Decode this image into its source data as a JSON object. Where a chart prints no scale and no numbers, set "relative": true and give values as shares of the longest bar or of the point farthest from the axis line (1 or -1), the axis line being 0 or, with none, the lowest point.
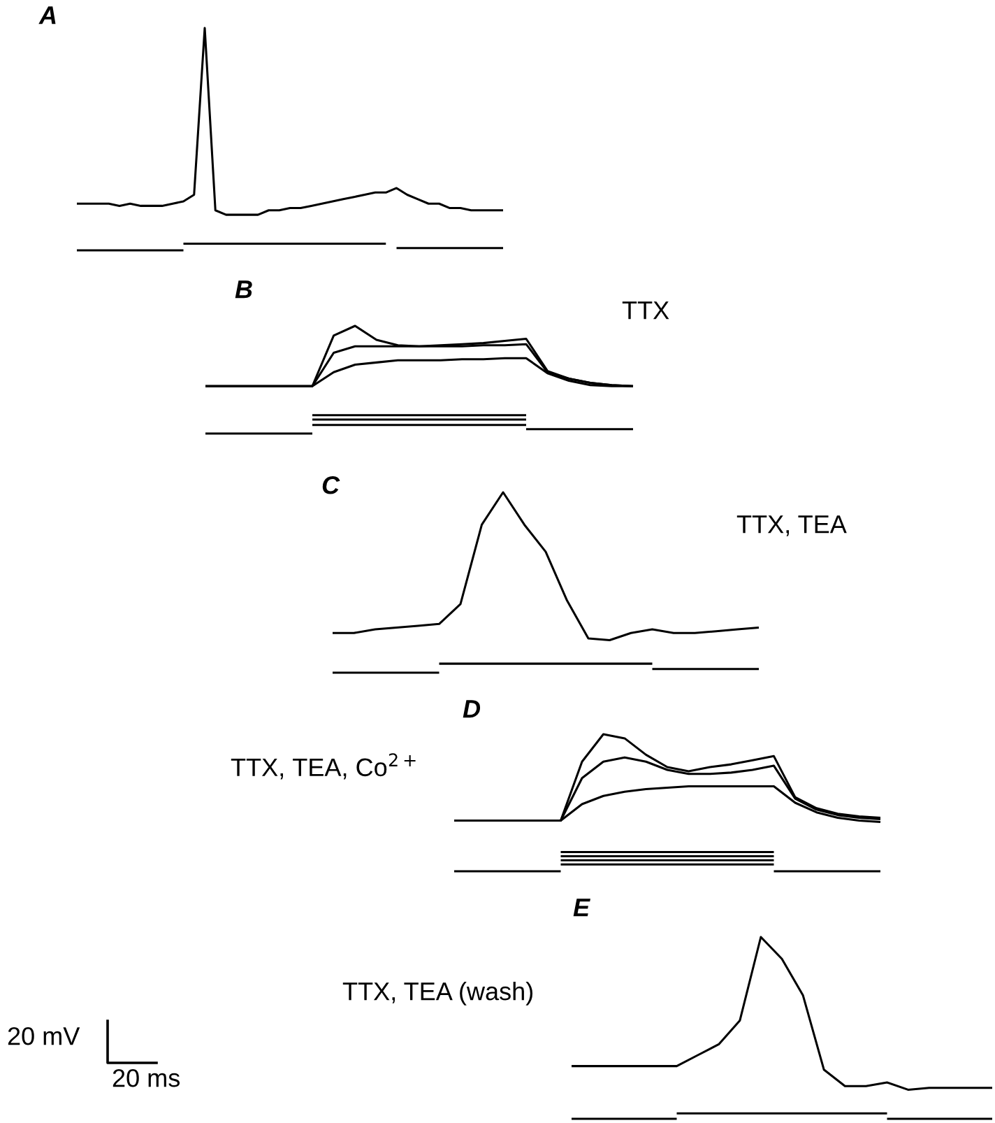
{
  "chart_data": [
    {
      "type": "line",
      "relative": true,
      "title": "A",
      "categories": [
        null,
        null,
        null,
        null,
        null,
        null,
        null,
        null,
        null,
        null,
        null,
        null,
        null,
        null,
        null,
        null,
        null,
        null,
        null,
        null,
        null,
        null,
        null,
        null,
        null,
        null,
        null,
        null,
        null,
        null,
        null,
        null,
        null,
        null,
        null,
        null,
        null,
        null,
        null,
        null,
        null
      ],
      "series": [
        {
          "color": "#000000",
          "values": [
            0.21,
            0.21,
            0.21,
            0.21,
            0.2,
            0.21,
            0.2,
            0.2,
            0.2,
            0.21,
            0.22,
            0.25,
            1.0,
            0.18,
            0.16,
            0.16,
            0.16,
            0.16,
            0.18,
            0.18,
            0.19,
            0.19,
            0.2,
            0.21,
            0.22,
            0.23,
            0.24,
            0.25,
            0.26,
            0.26,
            0.28,
            0.25,
            0.23,
            0.21,
            0.21,
            0.19,
            0.19,
            0.18,
            0.18,
            0.18,
            0.18
          ]
        },
        {
          "color": "#000000",
          "values": [
            0,
            0,
            0,
            0,
            0,
            0,
            0,
            0,
            0,
            0,
            0,
            null,
            null,
            null,
            null,
            null,
            null,
            null,
            null,
            null,
            null,
            null,
            null,
            null,
            null,
            null,
            null,
            null,
            null,
            null,
            0.01,
            0.01,
            0.01,
            0.01,
            0.01,
            0.01,
            0.01,
            0.01,
            0.01,
            0.01,
            0.01
          ]
        },
        {
          "color": "#000000",
          "values": [
            null,
            null,
            null,
            null,
            null,
            null,
            null,
            null,
            null,
            null,
            0.03,
            0.03,
            0.03,
            0.03,
            0.03,
            0.03,
            0.03,
            0.03,
            0.03,
            0.03,
            0.03,
            0.03,
            0.03,
            0.03,
            0.03,
            0.03,
            0.03,
            0.03,
            0.03,
            0.03,
            null,
            null,
            null,
            null,
            null,
            null,
            null,
            null,
            null,
            null,
            null
          ]
        }
      ]
    },
    {
      "type": "line",
      "relative": true,
      "title": "B",
      "annotations": [
        "TTX"
      ],
      "categories": [
        null,
        null,
        null,
        null,
        null,
        null,
        null,
        null,
        null,
        null,
        null,
        null,
        null,
        null,
        null,
        null,
        null,
        null,
        null,
        null,
        null
      ],
      "series": [
        {
          "color": "#000000",
          "values": [
            0.44,
            0.44,
            0.44,
            0.44,
            0.44,
            0.44,
            0.91,
            1.0,
            0.87,
            0.82,
            0.81,
            0.82,
            0.83,
            0.84,
            0.86,
            0.88,
            0.58,
            0.51,
            0.47,
            0.45,
            0.44
          ]
        },
        {
          "color": "#000000",
          "values": [
            0.44,
            0.44,
            0.44,
            0.44,
            0.44,
            0.44,
            0.75,
            0.81,
            0.81,
            0.81,
            0.81,
            0.81,
            0.81,
            0.82,
            0.82,
            0.83,
            0.57,
            0.51,
            0.47,
            0.45,
            0.44
          ]
        },
        {
          "color": "#000000",
          "values": [
            0.44,
            0.44,
            0.44,
            0.44,
            0.44,
            0.44,
            0.57,
            0.64,
            0.66,
            0.68,
            0.68,
            0.68,
            0.69,
            0.69,
            0.7,
            0.7,
            0.56,
            0.49,
            0.45,
            0.44,
            0.44
          ]
        },
        {
          "color": "#000000",
          "values": [
            0,
            0,
            0,
            0,
            0,
            0,
            null,
            null,
            null,
            null,
            null,
            null,
            null,
            null,
            null,
            0.04,
            0.04,
            0.04,
            0.04,
            0.04,
            0.04
          ]
        },
        {
          "color": "#000000",
          "values": [
            null,
            null,
            null,
            null,
            null,
            0.17,
            0.17,
            0.17,
            0.17,
            0.17,
            0.17,
            0.17,
            0.17,
            0.17,
            0.17,
            0.17,
            null,
            null,
            null,
            null,
            null
          ]
        },
        {
          "color": "#000000",
          "values": [
            null,
            null,
            null,
            null,
            null,
            0.13,
            0.13,
            0.13,
            0.13,
            0.13,
            0.13,
            0.13,
            0.13,
            0.13,
            0.13,
            0.13,
            null,
            null,
            null,
            null,
            null
          ]
        },
        {
          "color": "#000000",
          "values": [
            null,
            null,
            null,
            null,
            null,
            0.08,
            0.08,
            0.08,
            0.08,
            0.08,
            0.08,
            0.08,
            0.08,
            0.08,
            0.08,
            0.08,
            null,
            null,
            null,
            null,
            null
          ]
        }
      ]
    },
    {
      "type": "line",
      "relative": true,
      "title": "C",
      "annotations": [
        "TTX, TEA"
      ],
      "categories": [
        null,
        null,
        null,
        null,
        null,
        null,
        null,
        null,
        null,
        null,
        null,
        null,
        null,
        null,
        null,
        null,
        null,
        null,
        null,
        null,
        null
      ],
      "series": [
        {
          "color": "#000000",
          "values": [
            0.22,
            0.22,
            0.24,
            0.25,
            0.26,
            0.27,
            0.38,
            0.82,
            1.0,
            0.82,
            0.67,
            0.4,
            0.19,
            0.18,
            0.22,
            0.24,
            0.22,
            0.22,
            0.23,
            0.24,
            0.25
          ]
        },
        {
          "color": "#000000",
          "values": [
            0,
            0,
            0,
            0,
            0,
            0,
            null,
            null,
            null,
            null,
            null,
            null,
            null,
            null,
            null,
            0.02,
            0.02,
            0.02,
            0.02,
            0.02,
            0.02
          ]
        },
        {
          "color": "#000000",
          "values": [
            null,
            null,
            null,
            null,
            null,
            0.05,
            0.05,
            0.05,
            0.05,
            0.05,
            0.05,
            0.05,
            0.05,
            0.05,
            0.05,
            0.05,
            null,
            null,
            null,
            null,
            null
          ]
        }
      ]
    },
    {
      "type": "line",
      "relative": true,
      "title": "D",
      "annotations": [
        "TTX, TEA, Co$^{2+}$"
      ],
      "categories": [
        null,
        null,
        null,
        null,
        null,
        null,
        null,
        null,
        null,
        null,
        null,
        null,
        null,
        null,
        null,
        null,
        null,
        null,
        null,
        null,
        null
      ],
      "series": [
        {
          "color": "#000000",
          "values": [
            0.37,
            0.37,
            0.37,
            0.37,
            0.37,
            0.37,
            0.8,
            1.0,
            0.97,
            0.85,
            0.76,
            0.73,
            0.76,
            0.78,
            0.81,
            0.84,
            0.54,
            0.46,
            0.42,
            0.4,
            0.39
          ]
        },
        {
          "color": "#000000",
          "values": [
            0.37,
            0.37,
            0.37,
            0.37,
            0.37,
            0.37,
            0.68,
            0.8,
            0.83,
            0.8,
            0.74,
            0.71,
            0.71,
            0.72,
            0.74,
            0.77,
            0.53,
            0.45,
            0.41,
            0.39,
            0.38
          ]
        },
        {
          "color": "#000000",
          "values": [
            0.37,
            0.37,
            0.37,
            0.37,
            0.37,
            0.37,
            0.49,
            0.55,
            0.58,
            0.6,
            0.61,
            0.62,
            0.62,
            0.62,
            0.62,
            0.62,
            0.5,
            0.43,
            0.39,
            0.37,
            0.36
          ]
        },
        {
          "color": "#000000",
          "values": [
            0,
            0,
            0,
            0,
            0,
            0,
            null,
            null,
            null,
            null,
            null,
            null,
            null,
            null,
            null,
            0,
            0,
            0,
            0,
            0,
            0
          ]
        },
        {
          "color": "#000000",
          "values": [
            null,
            null,
            null,
            null,
            null,
            0.14,
            0.14,
            0.14,
            0.14,
            0.14,
            0.14,
            0.14,
            0.14,
            0.14,
            0.14,
            0.14,
            null,
            null,
            null,
            null,
            null
          ]
        },
        {
          "color": "#000000",
          "values": [
            null,
            null,
            null,
            null,
            null,
            0.11,
            0.11,
            0.11,
            0.11,
            0.11,
            0.11,
            0.11,
            0.11,
            0.11,
            0.11,
            0.11,
            null,
            null,
            null,
            null,
            null
          ]
        },
        {
          "color": "#000000",
          "values": [
            null,
            null,
            null,
            null,
            null,
            0.08,
            0.08,
            0.08,
            0.08,
            0.08,
            0.08,
            0.08,
            0.08,
            0.08,
            0.08,
            0.08,
            null,
            null,
            null,
            null,
            null
          ]
        },
        {
          "color": "#000000",
          "values": [
            null,
            null,
            null,
            null,
            null,
            0.05,
            0.05,
            0.05,
            0.05,
            0.05,
            0.05,
            0.05,
            0.05,
            0.05,
            0.05,
            0.05,
            null,
            null,
            null,
            null,
            null
          ]
        }
      ]
    },
    {
      "type": "line",
      "relative": true,
      "title": "E",
      "annotations": [
        "TTX, TEA (wash)",
        "20 mV",
        "20 ms"
      ],
      "categories": [
        null,
        null,
        null,
        null,
        null,
        null,
        null,
        null,
        null,
        null,
        null,
        null,
        null,
        null,
        null,
        null,
        null,
        null,
        null,
        null,
        null
      ],
      "series": [
        {
          "color": "#000000",
          "values": [
            0.29,
            0.29,
            0.29,
            0.29,
            0.29,
            0.29,
            0.35,
            0.41,
            0.54,
            1.0,
            0.88,
            0.68,
            0.27,
            0.18,
            0.18,
            0.2,
            0.16,
            0.17,
            0.17,
            0.17,
            0.17
          ]
        },
        {
          "color": "#000000",
          "values": [
            0,
            0,
            0,
            0,
            0,
            0,
            null,
            null,
            null,
            null,
            null,
            null,
            null,
            null,
            null,
            0,
            0,
            0,
            0,
            0,
            0
          ]
        },
        {
          "color": "#000000",
          "values": [
            null,
            null,
            null,
            null,
            null,
            0.03,
            0.03,
            0.03,
            0.03,
            0.03,
            0.03,
            0.03,
            0.03,
            0.03,
            0.03,
            0.03,
            null,
            null,
            null,
            null,
            null
          ]
        }
      ]
    }
  ]
}
